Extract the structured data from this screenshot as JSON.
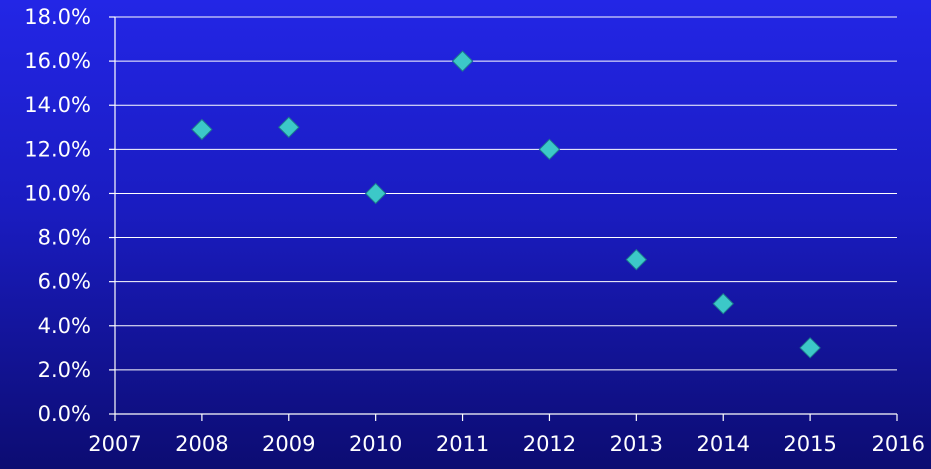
{
  "chart_data": {
    "type": "scatter",
    "title": "",
    "xlabel": "",
    "ylabel": "",
    "xlim": [
      2007,
      2016
    ],
    "ylim": [
      0,
      18
    ],
    "x_ticks": [
      2007,
      2008,
      2009,
      2010,
      2011,
      2012,
      2013,
      2014,
      2015,
      2016
    ],
    "x_tick_labels": [
      "2007",
      "2008",
      "2009",
      "2010",
      "2011",
      "2012",
      "2013",
      "2014",
      "2015",
      "2016"
    ],
    "y_ticks": [
      0,
      2,
      4,
      6,
      8,
      10,
      12,
      14,
      16,
      18
    ],
    "y_tick_labels": [
      "0.0%",
      "2.0%",
      "4.0%",
      "6.0%",
      "8.0%",
      "10.0%",
      "12.0%",
      "14.0%",
      "16.0%",
      "18.0%"
    ],
    "grid": true,
    "legend": "none",
    "marker": "diamond",
    "series": [
      {
        "color": "#3cc8c8",
        "points": [
          {
            "x": 2008,
            "y": 12.9
          },
          {
            "x": 2009,
            "y": 13.0
          },
          {
            "x": 2010,
            "y": 10.0
          },
          {
            "x": 2011,
            "y": 16.0
          },
          {
            "x": 2012,
            "y": 12.0
          },
          {
            "x": 2013,
            "y": 7.0
          },
          {
            "x": 2014,
            "y": 5.0
          },
          {
            "x": 2015,
            "y": 3.0
          }
        ]
      }
    ],
    "colors": {
      "background_top": "#2326e6",
      "background_bottom": "#0c0c72",
      "axis": "#ffffff",
      "text": "#ffffff"
    }
  }
}
